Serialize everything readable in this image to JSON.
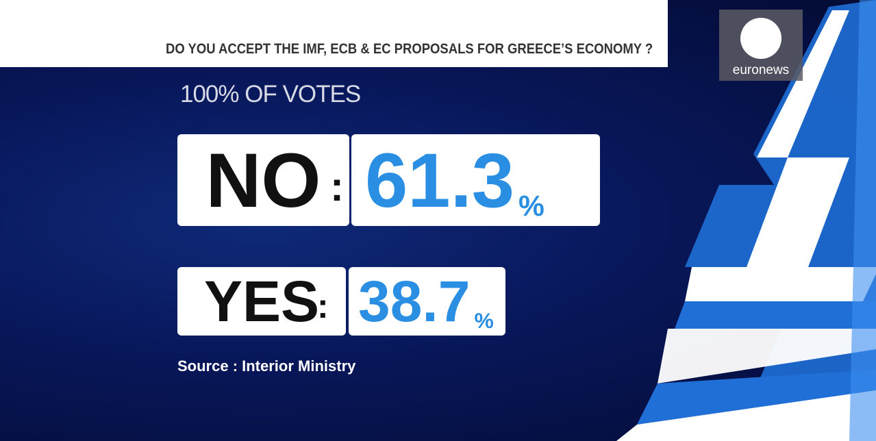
{
  "header": {
    "question": "DO YOU ACCEPT THE IMF, ECB & EC PROPOSALS FOR GREECE’S ECONOMY ?"
  },
  "logo": {
    "text": "euronews"
  },
  "subtitle": "100% OF VOTES",
  "results": [
    {
      "label": "NO",
      "separator": ":",
      "value": 61.3,
      "unit": "%"
    },
    {
      "label": "YES",
      "separator": ":",
      "value": 38.7,
      "unit": "%"
    }
  ],
  "source": "Source : Interior Ministry"
}
